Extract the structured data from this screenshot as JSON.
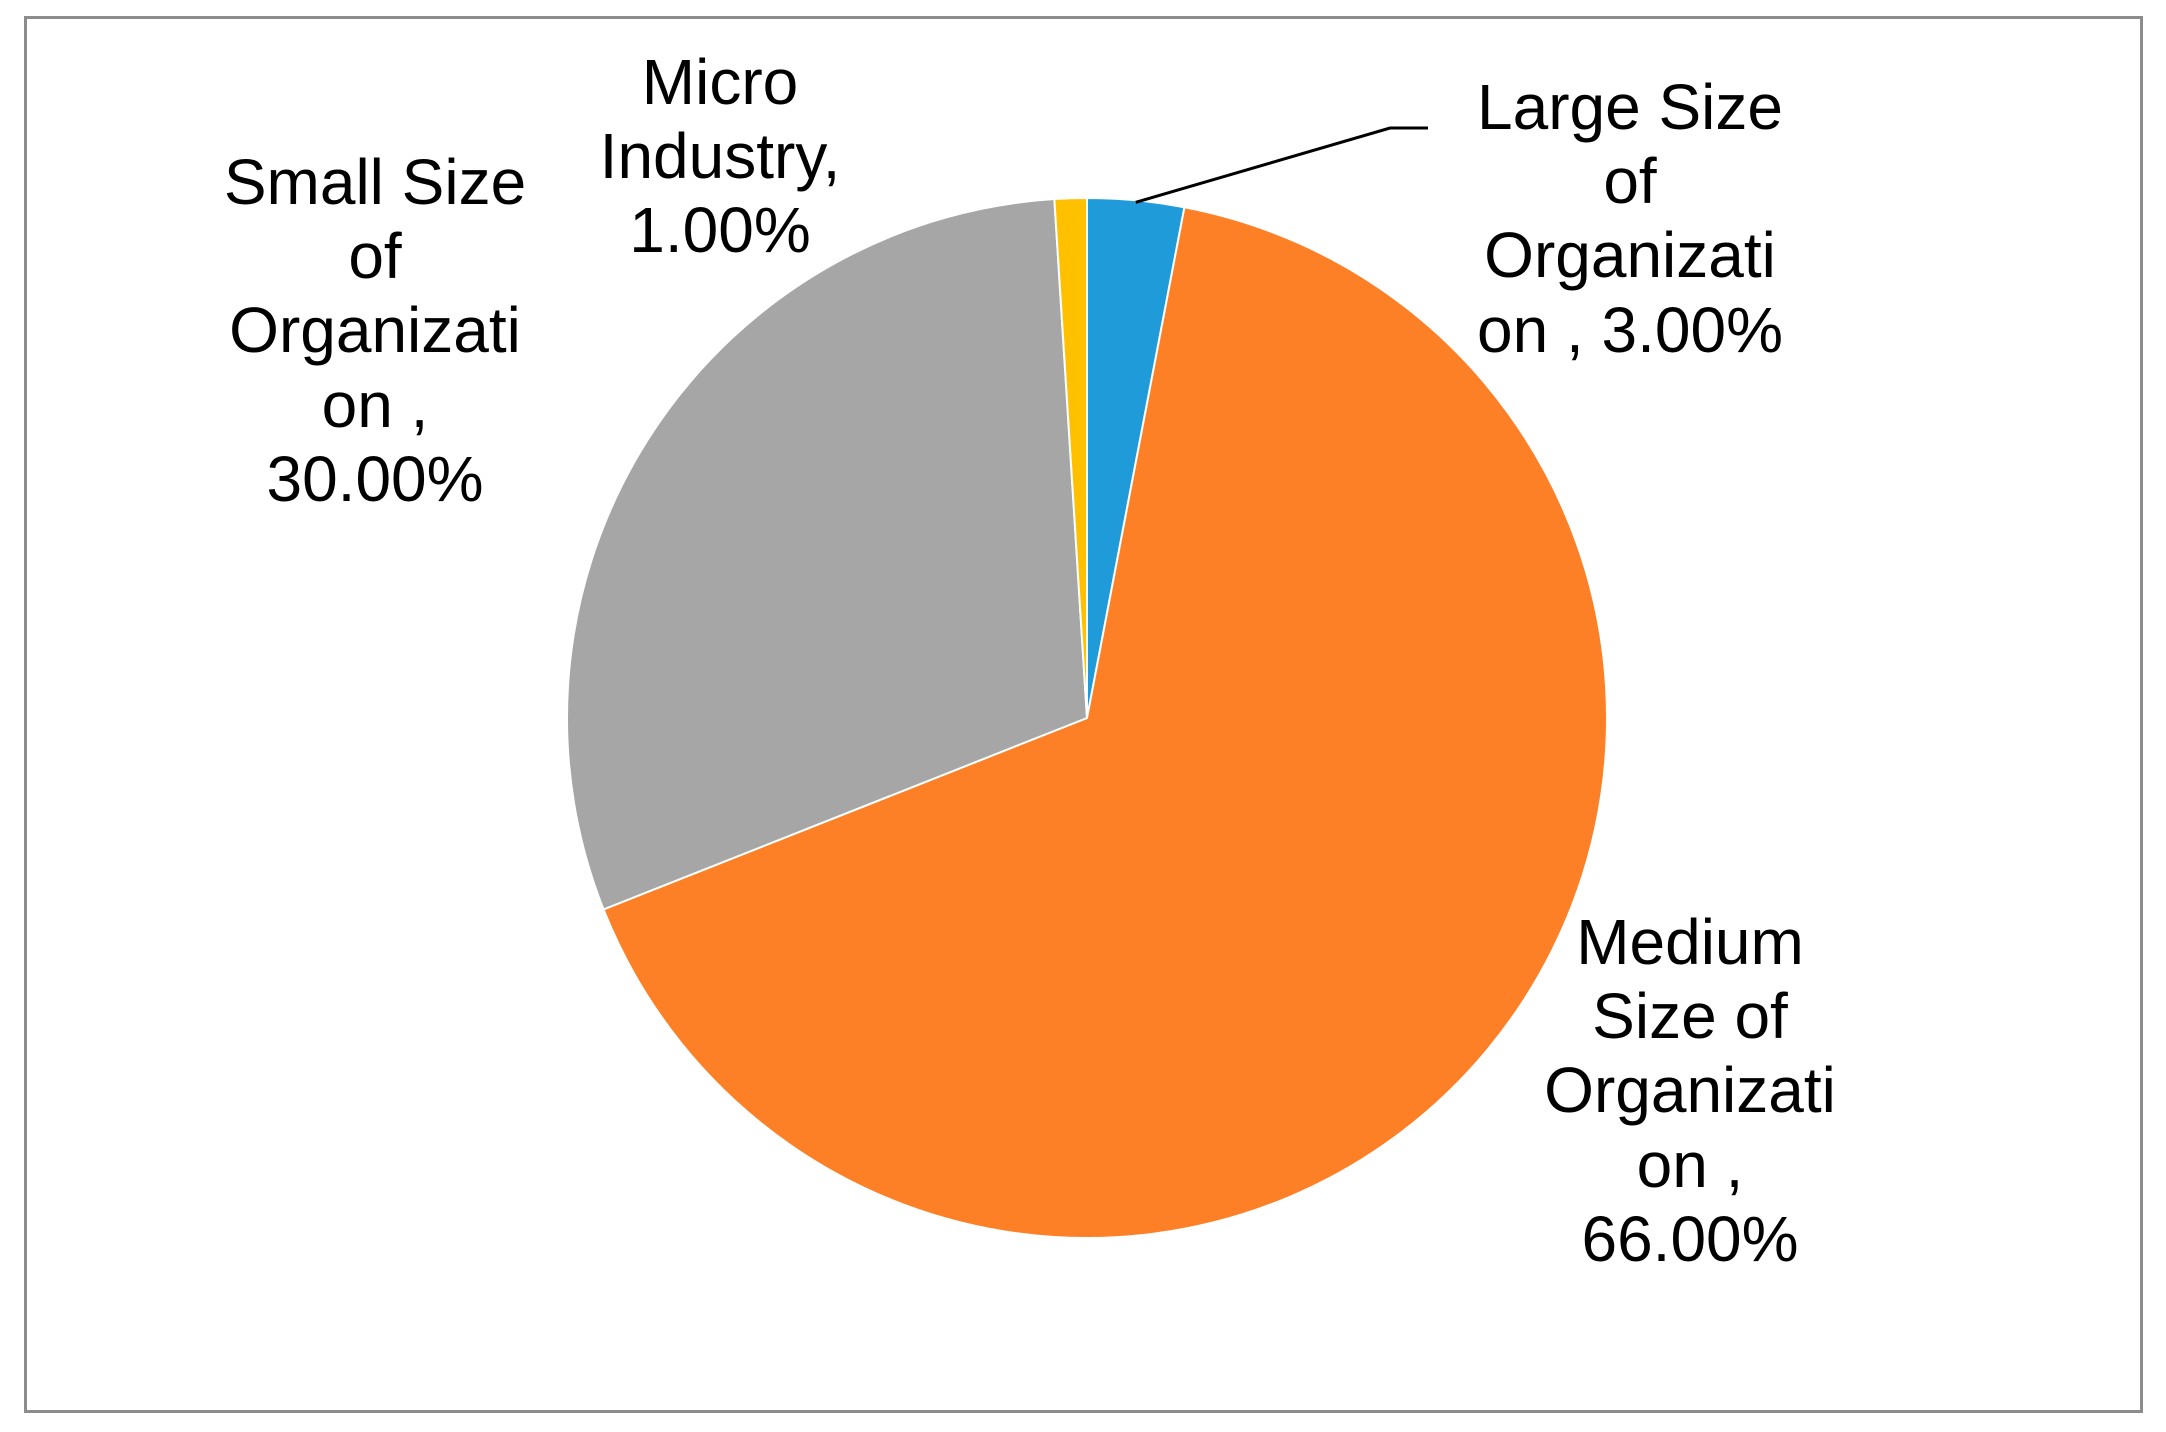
{
  "chart_data": {
    "type": "pie",
    "title": "",
    "slices": [
      {
        "label": "Large Size of Organization",
        "value": 3.0,
        "label_lines": [
          "Large Size",
          "of",
          "Organizati",
          "on  , 3.00%"
        ],
        "color": "#1f9bd9"
      },
      {
        "label": "Medium Size of Organization",
        "value": 66.0,
        "label_lines": [
          "Medium",
          "Size of",
          "Organizati",
          "on  ,",
          "66.00%"
        ],
        "color": "#fd7f26"
      },
      {
        "label": "Small Size of Organization",
        "value": 30.0,
        "label_lines": [
          "Small Size",
          "of",
          "Organizati",
          "on  ,",
          "30.00%"
        ],
        "color": "#a6a6a6"
      },
      {
        "label": "Micro Industry",
        "value": 1.0,
        "label_lines": [
          "Micro",
          "Industry,",
          "1.00%"
        ],
        "color": "#ffc000"
      }
    ],
    "legend": "none"
  }
}
